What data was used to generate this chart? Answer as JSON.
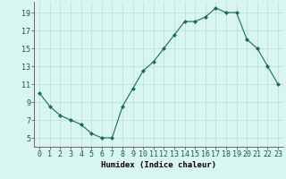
{
  "x": [
    0,
    1,
    2,
    3,
    4,
    5,
    6,
    7,
    8,
    9,
    10,
    11,
    12,
    13,
    14,
    15,
    16,
    17,
    18,
    19,
    20,
    21,
    22,
    23
  ],
  "y": [
    10,
    8.5,
    7.5,
    7,
    6.5,
    5.5,
    5,
    5,
    8.5,
    10.5,
    12.5,
    13.5,
    15,
    16.5,
    18,
    18,
    18.5,
    19.5,
    19,
    19,
    16,
    15,
    13,
    11
  ],
  "line_color": "#1a6b5a",
  "marker": "D",
  "marker_size": 2,
  "bg_color": "#d8f5f0",
  "grid_color": "#b8dcd8",
  "xlabel": "Humidex (Indice chaleur)",
  "xlim": [
    -0.5,
    23.5
  ],
  "ylim": [
    4.0,
    20.2
  ],
  "yticks": [
    5,
    7,
    9,
    11,
    13,
    15,
    17,
    19
  ],
  "xticks": [
    0,
    1,
    2,
    3,
    4,
    5,
    6,
    7,
    8,
    9,
    10,
    11,
    12,
    13,
    14,
    15,
    16,
    17,
    18,
    19,
    20,
    21,
    22,
    23
  ],
  "xlabel_fontsize": 6.5,
  "tick_fontsize": 6.0
}
